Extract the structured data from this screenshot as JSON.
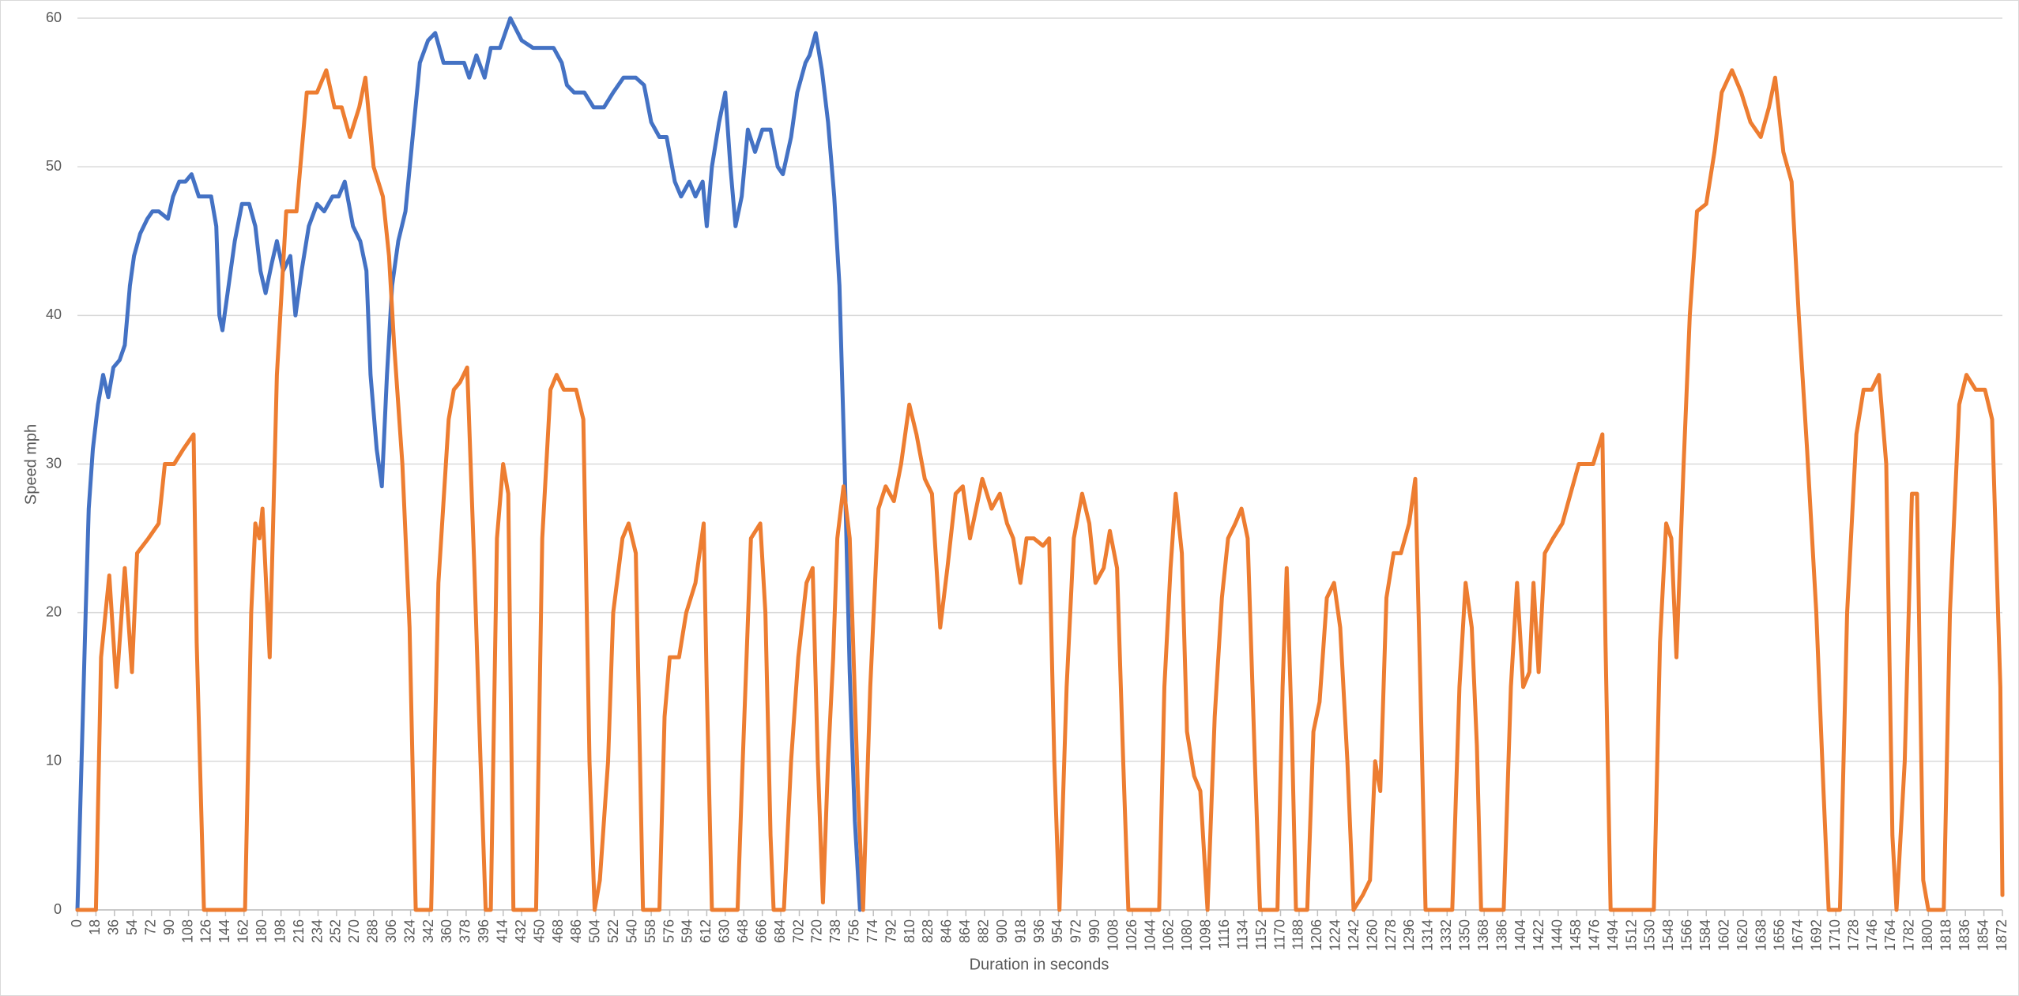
{
  "chart_data": {
    "type": "line",
    "xlabel": "Duration in seconds",
    "ylabel": "Speed mph",
    "xlim": [
      0,
      1872
    ],
    "ylim": [
      0,
      60
    ],
    "yticks": [
      0,
      10,
      20,
      30,
      40,
      50,
      60
    ],
    "xticks": [
      0,
      18,
      36,
      54,
      72,
      90,
      108,
      126,
      144,
      162,
      180,
      198,
      216,
      234,
      252,
      270,
      288,
      306,
      324,
      342,
      360,
      378,
      396,
      414,
      432,
      450,
      468,
      486,
      504,
      522,
      540,
      558,
      576,
      594,
      612,
      630,
      648,
      666,
      684,
      702,
      720,
      738,
      756,
      774,
      792,
      810,
      828,
      846,
      864,
      882,
      900,
      918,
      936,
      954,
      972,
      990,
      1008,
      1026,
      1044,
      1062,
      1080,
      1098,
      1116,
      1134,
      1152,
      1170,
      1188,
      1206,
      1224,
      1242,
      1260,
      1278,
      1296,
      1314,
      1332,
      1350,
      1368,
      1386,
      1404,
      1422,
      1440,
      1458,
      1476,
      1494,
      1512,
      1530,
      1548,
      1566,
      1584,
      1602,
      1620,
      1638,
      1656,
      1674,
      1692,
      1710,
      1728,
      1746,
      1764,
      1782,
      1800,
      1818,
      1836,
      1854,
      1872
    ],
    "grid": true,
    "series": [
      {
        "color": "#4472c4",
        "x": [
          0,
          4,
          8,
          11,
          15,
          20,
          25,
          30,
          35,
          41,
          46,
          51,
          55,
          61,
          68,
          73,
          79,
          88,
          93,
          99,
          105,
          111,
          118,
          123,
          130,
          135,
          138,
          141,
          147,
          153,
          160,
          167,
          173,
          178,
          183,
          189,
          194,
          200,
          207,
          212,
          218,
          225,
          233,
          240,
          248,
          254,
          260,
          268,
          275,
          281,
          285,
          291,
          296,
          301,
          306,
          312,
          319,
          326,
          333,
          341,
          348,
          356,
          366,
          376,
          381,
          388,
          396,
          402,
          411,
          421,
          432,
          443,
          453,
          463,
          471,
          476,
          483,
          493,
          502,
          512,
          521,
          531,
          543,
          551,
          558,
          566,
          573,
          581,
          587,
          595,
          601,
          608,
          612,
          617,
          624,
          630,
          635,
          640,
          646,
          652,
          659,
          666,
          674,
          681,
          686,
          694,
          700,
          708,
          712,
          718,
          724,
          730,
          736,
          741,
          746,
          751,
          756,
          761
        ],
        "values": [
          0,
          10,
          20,
          27,
          31,
          34,
          36,
          34.5,
          36.5,
          37,
          38,
          42,
          44,
          45.5,
          46.5,
          47,
          47,
          46.5,
          48,
          49,
          49,
          49.5,
          48,
          48,
          48,
          46,
          40,
          39,
          42,
          45,
          47.5,
          47.5,
          46,
          43,
          41.5,
          43.5,
          45,
          43,
          44,
          40,
          43,
          46,
          47.5,
          47,
          48,
          48,
          49,
          46,
          45,
          43,
          36,
          31,
          28.5,
          36,
          42,
          45,
          47,
          52,
          57,
          58.5,
          59,
          57,
          57,
          57,
          56,
          57.5,
          56,
          58,
          58,
          60,
          58.5,
          58,
          58,
          58,
          57,
          55.5,
          55,
          55,
          54,
          54,
          55,
          56,
          56,
          55.5,
          53,
          52,
          52,
          49,
          48,
          49,
          48,
          49,
          46,
          50,
          53,
          55,
          50,
          46,
          48,
          52.5,
          51,
          52.5,
          52.5,
          50,
          49.5,
          52,
          55,
          57,
          57.5,
          59,
          56.5,
          53,
          48,
          42,
          30,
          16,
          6,
          0
        ]
      },
      {
        "color": "#ed7d31",
        "x": [
          0,
          18,
          23,
          31,
          38,
          46,
          53,
          58,
          69,
          79,
          85,
          94,
          103,
          113,
          116,
          123,
          163,
          169,
          173,
          177,
          180,
          187,
          194,
          203,
          213,
          223,
          233,
          242,
          250,
          257,
          265,
          274,
          280,
          288,
          297,
          303,
          308,
          316,
          323,
          329,
          344,
          351,
          361,
          366,
          372,
          379,
          386,
          392,
          397,
          402,
          408,
          414,
          419,
          424,
          446,
          452,
          460,
          466,
          473,
          485,
          492,
          498,
          503,
          508,
          516,
          521,
          530,
          536,
          543,
          550,
          566,
          571,
          576,
          585,
          592,
          601,
          609,
          612,
          617,
          642,
          647,
          655,
          664,
          669,
          674,
          677,
          687,
          694,
          701,
          709,
          715,
          720,
          725,
          730,
          735,
          739,
          745,
          751,
          759,
          764,
          771,
          779,
          786,
          794,
          801,
          809,
          816,
          824,
          831,
          839,
          846,
          854,
          861,
          868,
          874,
          880,
          889,
          897,
          904,
          910,
          917,
          923,
          930,
          939,
          945,
          950,
          955,
          962,
          969,
          977,
          984,
          990,
          998,
          1004,
          1011,
          1017,
          1022,
          1052,
          1057,
          1063,
          1068,
          1074,
          1079,
          1086,
          1092,
          1099,
          1106,
          1113,
          1119,
          1126,
          1132,
          1138,
          1145,
          1150,
          1167,
          1172,
          1176,
          1181,
          1185,
          1196,
          1202,
          1208,
          1215,
          1222,
          1228,
          1235,
          1241,
          1250,
          1257,
          1262,
          1267,
          1273,
          1280,
          1287,
          1295,
          1301,
          1306,
          1311,
          1337,
          1344,
          1350,
          1356,
          1361,
          1365,
          1387,
          1394,
          1400,
          1406,
          1412,
          1416,
          1421,
          1427,
          1435,
          1444,
          1452,
          1460,
          1468,
          1474,
          1483,
          1486,
          1491,
          1533,
          1539,
          1545,
          1550,
          1555,
          1562,
          1568,
          1575,
          1584,
          1592,
          1599,
          1609,
          1618,
          1627,
          1637,
          1645,
          1651,
          1659,
          1667,
          1674,
          1682,
          1691,
          1698,
          1703,
          1714,
          1721,
          1730,
          1737,
          1745,
          1752,
          1759,
          1765,
          1769,
          1777,
          1784,
          1789,
          1795,
          1800,
          1815,
          1821,
          1830,
          1837,
          1846,
          1855,
          1862,
          1870,
          1872
        ],
        "values": [
          0,
          0,
          17,
          22.5,
          15,
          23,
          16,
          24,
          25,
          26,
          30,
          30,
          31,
          32,
          18,
          0,
          0,
          20,
          26,
          25,
          27,
          17,
          36,
          47,
          47,
          55,
          55,
          56.5,
          54,
          54,
          52,
          54,
          56,
          50,
          48,
          44,
          38,
          30,
          19,
          0,
          0,
          22,
          33,
          35,
          35.5,
          36.5,
          23,
          10,
          0,
          0,
          25,
          30,
          28,
          0,
          0,
          25,
          35,
          36,
          35,
          35,
          33,
          10,
          0,
          2,
          10,
          20,
          25,
          26,
          24,
          0,
          0,
          13,
          17,
          17,
          20,
          22,
          26,
          15,
          0,
          0,
          10,
          25,
          26,
          20,
          5,
          0,
          0,
          10,
          17,
          22,
          23,
          10,
          0.5,
          10,
          17,
          25,
          28.5,
          25,
          8,
          0,
          15,
          27,
          28.5,
          27.5,
          30,
          34,
          32,
          29,
          28,
          19,
          23,
          28,
          28.5,
          25,
          27,
          29,
          27,
          28,
          26,
          25,
          22,
          25,
          25,
          24.5,
          25,
          10,
          0,
          15,
          25,
          28,
          26,
          22,
          23,
          25.5,
          23,
          10,
          0,
          0,
          15,
          23,
          28,
          24,
          12,
          9,
          8,
          0,
          13,
          21,
          25,
          26,
          27,
          25,
          10,
          0,
          0,
          15,
          23,
          12,
          0,
          0,
          12,
          14,
          21,
          22,
          19,
          10,
          0,
          1,
          2,
          10,
          8,
          21,
          24,
          24,
          26,
          29,
          15,
          0,
          0,
          15,
          22,
          19,
          11,
          0,
          0,
          15,
          22,
          15,
          16,
          22,
          16,
          24,
          25,
          26,
          28,
          30,
          30,
          30,
          32,
          18,
          0,
          0,
          18,
          26,
          25,
          17,
          30,
          40,
          47,
          47.5,
          51,
          55,
          56.5,
          55,
          53,
          52,
          54,
          56,
          51,
          49,
          40,
          31,
          20,
          8,
          0,
          0,
          20,
          32,
          35,
          35,
          36,
          30,
          5,
          0,
          10,
          28,
          28,
          2,
          0,
          0,
          20,
          34,
          36,
          35,
          35,
          33,
          15,
          1
        ]
      }
    ]
  }
}
